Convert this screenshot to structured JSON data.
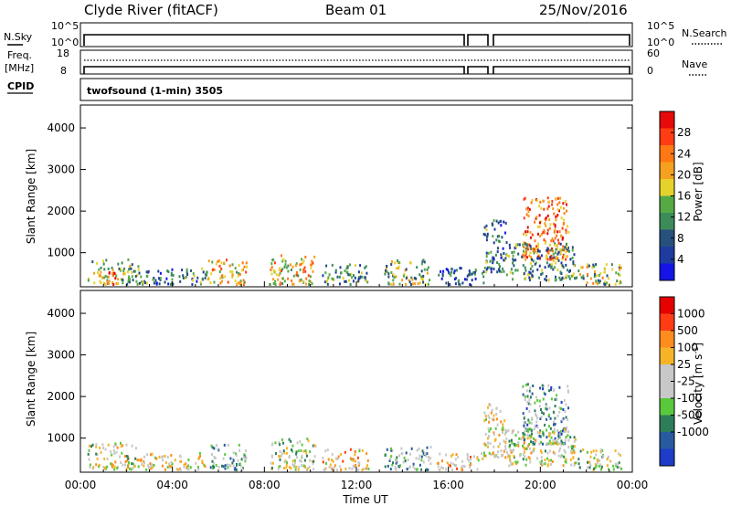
{
  "header": {
    "station": "Clyde River (fitACF)",
    "beam": "Beam 01",
    "date": "25/Nov/2016"
  },
  "top_panels": {
    "nsky_label": "N.Sky",
    "nsky_ticks": [
      "10^5",
      "10^0"
    ],
    "nsearch_label": "N.Search",
    "nsearch_ticks": [
      "10^5",
      "10^0"
    ],
    "freq_label": "Freq.",
    "freq_unit": "[MHz]",
    "freq_ticks": [
      "18",
      "8"
    ],
    "nave_label": "Nave",
    "nave_ticks": [
      "60",
      "0"
    ],
    "cpid_label": "CPID",
    "cpid_text": "twofsound (1-min) 3505"
  },
  "colors": {
    "power_scale": [
      "#1414e6",
      "#1e3ca0",
      "#28507d",
      "#3c8c5a",
      "#55aa46",
      "#e6d22d",
      "#f5a01e",
      "#ff7814",
      "#ff3c14",
      "#e60a0a"
    ],
    "velocity_scale": [
      "#1e3cc8",
      "#285aa0",
      "#2d7d5a",
      "#5ac83c",
      "#c8c8c8",
      "#c8c8c8",
      "#f5b428",
      "#ff8c1e",
      "#ff3c14",
      "#e60000"
    ]
  },
  "chart_data": [
    {
      "type": "heatmap",
      "parameter": "power",
      "ylabel": "Slant Range [km]",
      "yticks": [
        "1000",
        "2000",
        "3000",
        "4000"
      ],
      "ylim": [
        180,
        4550
      ],
      "xlim": [
        0,
        24
      ],
      "colorbar_label": "Power [dB]",
      "colorbar_range": [
        0,
        32
      ],
      "colorbar_ticks": [
        "4",
        "8",
        "12",
        "16",
        "20",
        "24",
        "28"
      ],
      "scatter_regions": [
        {
          "t": [
            0.3,
            2.5
          ],
          "r": [
            200,
            800
          ],
          "level": 0.45
        },
        {
          "t": [
            1.1,
            1.5
          ],
          "r": [
            200,
            550
          ],
          "level": 0.93
        },
        {
          "t": [
            2.5,
            5.5
          ],
          "r": [
            200,
            600
          ],
          "level": 0.3
        },
        {
          "t": [
            5.5,
            7.2
          ],
          "r": [
            200,
            800
          ],
          "level": 0.62
        },
        {
          "t": [
            8.2,
            10.2
          ],
          "r": [
            200,
            900
          ],
          "level": 0.6
        },
        {
          "t": [
            10.5,
            12.5
          ],
          "r": [
            200,
            700
          ],
          "level": 0.35
        },
        {
          "t": [
            13.2,
            15.2
          ],
          "r": [
            200,
            800
          ],
          "level": 0.45
        },
        {
          "t": [
            15.5,
            17.5
          ],
          "r": [
            200,
            600
          ],
          "level": 0.2
        },
        {
          "t": [
            17.5,
            18.5
          ],
          "r": [
            500,
            1800
          ],
          "level": 0.3
        },
        {
          "t": [
            19.2,
            21.2
          ],
          "r": [
            800,
            2300
          ],
          "level": 0.75
        },
        {
          "t": [
            18.5,
            21.5
          ],
          "r": [
            300,
            1200
          ],
          "level": 0.35
        },
        {
          "t": [
            21.5,
            23.5
          ],
          "r": [
            200,
            700
          ],
          "level": 0.5
        }
      ]
    },
    {
      "type": "heatmap",
      "parameter": "velocity",
      "ylabel": "Slant Range [km]",
      "yticks": [
        "1000",
        "2000",
        "3000",
        "4000"
      ],
      "ylim": [
        180,
        4550
      ],
      "xlabel": "Time UT",
      "xticks": [
        "00:00",
        "04:00",
        "08:00",
        "12:00",
        "16:00",
        "20:00",
        "00:00"
      ],
      "xlim": [
        0,
        24
      ],
      "colorbar_label": "Velocity [m s",
      "colorbar_label_sup": "-1",
      "colorbar_label_close": "]",
      "colorbar_ticks": [
        "1000",
        "500",
        "100",
        "25",
        "-25",
        "-100",
        "-500",
        "-1000"
      ],
      "scatter_regions": [
        {
          "t": [
            0.3,
            2.5
          ],
          "r": [
            200,
            850
          ],
          "level": 0.5
        },
        {
          "t": [
            2.5,
            5.5
          ],
          "r": [
            200,
            600
          ],
          "level": 0.55
        },
        {
          "t": [
            5.5,
            7.2
          ],
          "r": [
            200,
            800
          ],
          "level": 0.35
        },
        {
          "t": [
            8.2,
            10.2
          ],
          "r": [
            200,
            950
          ],
          "level": 0.45
        },
        {
          "t": [
            10.5,
            12.5
          ],
          "r": [
            200,
            700
          ],
          "level": 0.6
        },
        {
          "t": [
            13.2,
            15.2
          ],
          "r": [
            200,
            800
          ],
          "level": 0.35
        },
        {
          "t": [
            15.5,
            17.5
          ],
          "r": [
            200,
            600
          ],
          "level": 0.6
        },
        {
          "t": [
            17.5,
            18.5
          ],
          "r": [
            500,
            1800
          ],
          "level": 0.55
        },
        {
          "t": [
            19.2,
            21.2
          ],
          "r": [
            800,
            2300
          ],
          "level": 0.3
        },
        {
          "t": [
            18.5,
            21.5
          ],
          "r": [
            300,
            1200
          ],
          "level": 0.5
        },
        {
          "t": [
            21.5,
            23.5
          ],
          "r": [
            200,
            700
          ],
          "level": 0.45
        }
      ]
    }
  ]
}
